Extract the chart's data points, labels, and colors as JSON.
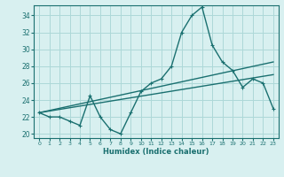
{
  "xlabel": "Humidex (Indice chaleur)",
  "ylabel": "",
  "bg_color": "#d8f0f0",
  "line_color": "#1a7070",
  "grid_color": "#add8d8",
  "xlim": [
    -0.5,
    23.5
  ],
  "ylim": [
    19.5,
    35.2
  ],
  "xticks": [
    0,
    1,
    2,
    3,
    4,
    5,
    6,
    7,
    8,
    9,
    10,
    11,
    12,
    13,
    14,
    15,
    16,
    17,
    18,
    19,
    20,
    21,
    22,
    23
  ],
  "yticks": [
    20,
    22,
    24,
    26,
    28,
    30,
    32,
    34
  ],
  "series1_x": [
    0,
    1,
    2,
    3,
    4,
    5,
    6,
    7,
    8,
    9,
    10,
    11,
    12,
    13,
    14,
    15,
    16,
    17,
    18,
    19,
    20,
    21,
    22,
    23
  ],
  "series1_y": [
    22.5,
    22,
    22,
    21.5,
    21,
    24.5,
    22,
    20.5,
    20,
    22.5,
    25,
    26,
    26.5,
    28,
    32,
    34,
    35,
    30.5,
    28.5,
    27.5,
    25.5,
    26.5,
    26,
    23
  ],
  "series2_x": [
    0,
    23
  ],
  "series2_y": [
    22.5,
    28.5
  ],
  "series3_x": [
    0,
    23
  ],
  "series3_y": [
    22.5,
    27.0
  ]
}
